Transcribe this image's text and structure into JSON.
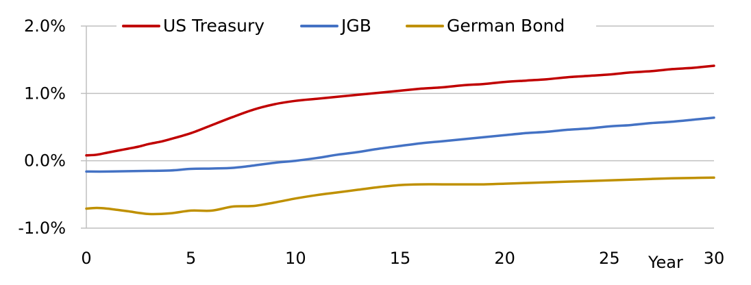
{
  "chart_data": {
    "type": "line",
    "title": "",
    "xlabel": "Year",
    "ylabel": "",
    "xlim": [
      0,
      30
    ],
    "ylim": [
      -1.0,
      2.0
    ],
    "x_ticks": [
      "0",
      "5",
      "10",
      "15",
      "20",
      "25",
      "30"
    ],
    "x_tick_values": [
      0,
      5,
      10,
      15,
      20,
      25,
      30
    ],
    "y_ticks": [
      "-1.0%",
      "0.0%",
      "1.0%",
      "2.0%"
    ],
    "y_tick_values": [
      -1.0,
      0.0,
      1.0,
      2.0
    ],
    "grid": "horizontal",
    "legend_position": "top",
    "series": [
      {
        "name": "US Treasury",
        "color": "#c00000",
        "x": [
          0,
          0.5,
          1,
          1.5,
          2,
          2.5,
          3,
          3.5,
          4,
          5,
          6,
          7,
          8,
          9,
          10,
          11,
          12,
          13,
          14,
          15,
          16,
          17,
          18,
          19,
          20,
          21,
          22,
          23,
          24,
          25,
          26,
          27,
          28,
          29,
          30
        ],
        "y": [
          0.08,
          0.09,
          0.12,
          0.15,
          0.18,
          0.21,
          0.25,
          0.28,
          0.32,
          0.41,
          0.53,
          0.65,
          0.76,
          0.84,
          0.89,
          0.92,
          0.95,
          0.98,
          1.01,
          1.04,
          1.07,
          1.09,
          1.12,
          1.14,
          1.17,
          1.19,
          1.21,
          1.24,
          1.26,
          1.28,
          1.31,
          1.33,
          1.36,
          1.38,
          1.41
        ]
      },
      {
        "name": "JGB",
        "color": "#4472c4",
        "x": [
          0,
          1,
          2,
          3,
          4,
          5,
          6,
          7,
          8,
          9,
          10,
          11,
          12,
          13,
          14,
          15,
          16,
          17,
          18,
          19,
          20,
          21,
          22,
          23,
          24,
          25,
          26,
          27,
          28,
          29,
          30
        ],
        "y": [
          -0.16,
          -0.16,
          -0.155,
          -0.15,
          -0.145,
          -0.12,
          -0.115,
          -0.105,
          -0.07,
          -0.03,
          0.0,
          0.04,
          0.09,
          0.13,
          0.18,
          0.22,
          0.26,
          0.29,
          0.32,
          0.35,
          0.38,
          0.41,
          0.43,
          0.46,
          0.48,
          0.51,
          0.53,
          0.56,
          0.58,
          0.61,
          0.64
        ]
      },
      {
        "name": "German Bond",
        "color": "#bf9000",
        "x": [
          0,
          0.5,
          1,
          1.5,
          2,
          3,
          4,
          5,
          6,
          7,
          8,
          9,
          10,
          11,
          12,
          13,
          14,
          15,
          16,
          17,
          18,
          19,
          20,
          21,
          22,
          23,
          24,
          25,
          26,
          27,
          28,
          29,
          30
        ],
        "y": [
          -0.71,
          -0.7,
          -0.71,
          -0.73,
          -0.75,
          -0.79,
          -0.78,
          -0.74,
          -0.74,
          -0.68,
          -0.67,
          -0.62,
          -0.56,
          -0.51,
          -0.47,
          -0.43,
          -0.39,
          -0.36,
          -0.35,
          -0.35,
          -0.35,
          -0.35,
          -0.34,
          -0.33,
          -0.32,
          -0.31,
          -0.3,
          -0.29,
          -0.28,
          -0.27,
          -0.26,
          -0.255,
          -0.25
        ]
      }
    ]
  }
}
